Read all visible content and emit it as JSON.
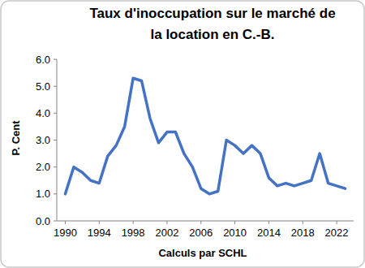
{
  "chart_data": {
    "type": "line",
    "title": "Taux d'inoccupation sur le marché de la location en C.-B.",
    "title_lines": [
      "Taux d'inoccupation sur le marché de",
      "la location en C.-B."
    ],
    "y_label": "P. Cent",
    "x_label": "Calculs par SCHL",
    "x": [
      1990,
      1991,
      1992,
      1993,
      1994,
      1995,
      1996,
      1997,
      1998,
      1999,
      2000,
      2001,
      2002,
      2003,
      2004,
      2005,
      2006,
      2007,
      2008,
      2009,
      2010,
      2011,
      2012,
      2013,
      2014,
      2015,
      2016,
      2017,
      2018,
      2019,
      2020,
      2021,
      2022,
      2023
    ],
    "values": [
      1.0,
      2.0,
      1.8,
      1.5,
      1.4,
      2.4,
      2.8,
      3.5,
      5.3,
      5.2,
      3.8,
      2.9,
      3.3,
      3.3,
      2.5,
      2.0,
      1.2,
      1.0,
      1.1,
      3.0,
      2.8,
      2.5,
      2.8,
      2.5,
      1.6,
      1.3,
      1.4,
      1.3,
      1.4,
      1.5,
      2.5,
      1.4,
      1.3,
      1.2
    ],
    "color": "#4472c4",
    "xlim": [
      1989,
      2024
    ],
    "xticks": [
      1990,
      1994,
      1998,
      2002,
      2006,
      2010,
      2014,
      2018,
      2022
    ],
    "ylim": [
      0,
      6
    ],
    "yticks": [
      {
        "value": 0,
        "label": "0.0"
      },
      {
        "value": 1,
        "label": "1.0"
      },
      {
        "value": 2,
        "label": "2.0"
      },
      {
        "value": 3,
        "label": "3.0"
      },
      {
        "value": 4,
        "label": "4.0"
      },
      {
        "value": 5,
        "label": "5.0"
      },
      {
        "value": 6,
        "label": "6.0"
      }
    ],
    "grid": false
  }
}
